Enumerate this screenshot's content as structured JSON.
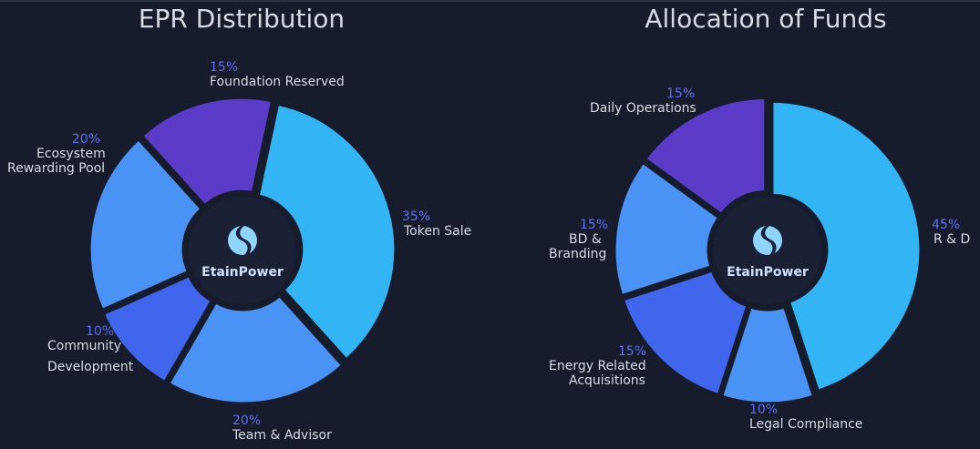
{
  "colors": {
    "background": "#161c2b",
    "hub": "#1a2135",
    "percent_text": "#5b6ff0",
    "label_text": "#d7dbe3",
    "logo": "#8fd3ff"
  },
  "brand": {
    "name": "EtainPower",
    "icon": "etainpower-logo-icon"
  },
  "chart_data": [
    {
      "type": "pie",
      "title": "EPR Distribution",
      "slices": [
        {
          "label": "Token Sale",
          "percent_label": "35%",
          "value": 35,
          "color": "#33b5f5"
        },
        {
          "label": "Team & Advisor",
          "percent_label": "20%",
          "value": 20,
          "color": "#4a92f3"
        },
        {
          "label": "Community Development",
          "lines": [
            "Community",
            "Development"
          ],
          "percent_label": "10%",
          "value": 10,
          "color": "#3f66ec"
        },
        {
          "label": "Ecosystem Rewarding Pool",
          "lines": [
            "Ecosystem",
            "Rewarding Pool"
          ],
          "percent_label": "20%",
          "value": 20,
          "color": "#4a92f3"
        },
        {
          "label": "Foundation Reserved",
          "percent_label": "15%",
          "value": 15,
          "color": "#5a3cc9"
        }
      ]
    },
    {
      "type": "pie",
      "title": "Allocation of Funds",
      "slices": [
        {
          "label": "R & D",
          "percent_label": "45%",
          "value": 45,
          "color": "#33b5f5"
        },
        {
          "label": "Legal Compliance",
          "percent_label": "10%",
          "value": 10,
          "color": "#4a92f3"
        },
        {
          "label": "Energy Related Acquisitions",
          "lines": [
            "Energy Related",
            "Acquisitions"
          ],
          "percent_label": "15%",
          "value": 15,
          "color": "#3f66ec"
        },
        {
          "label": "BD & Branding",
          "lines": [
            "BD &",
            "Branding"
          ],
          "percent_label": "15%",
          "value": 15,
          "color": "#4a92f3"
        },
        {
          "label": "Daily Operations",
          "percent_label": "15%",
          "value": 15,
          "color": "#5a3cc9"
        }
      ]
    }
  ]
}
